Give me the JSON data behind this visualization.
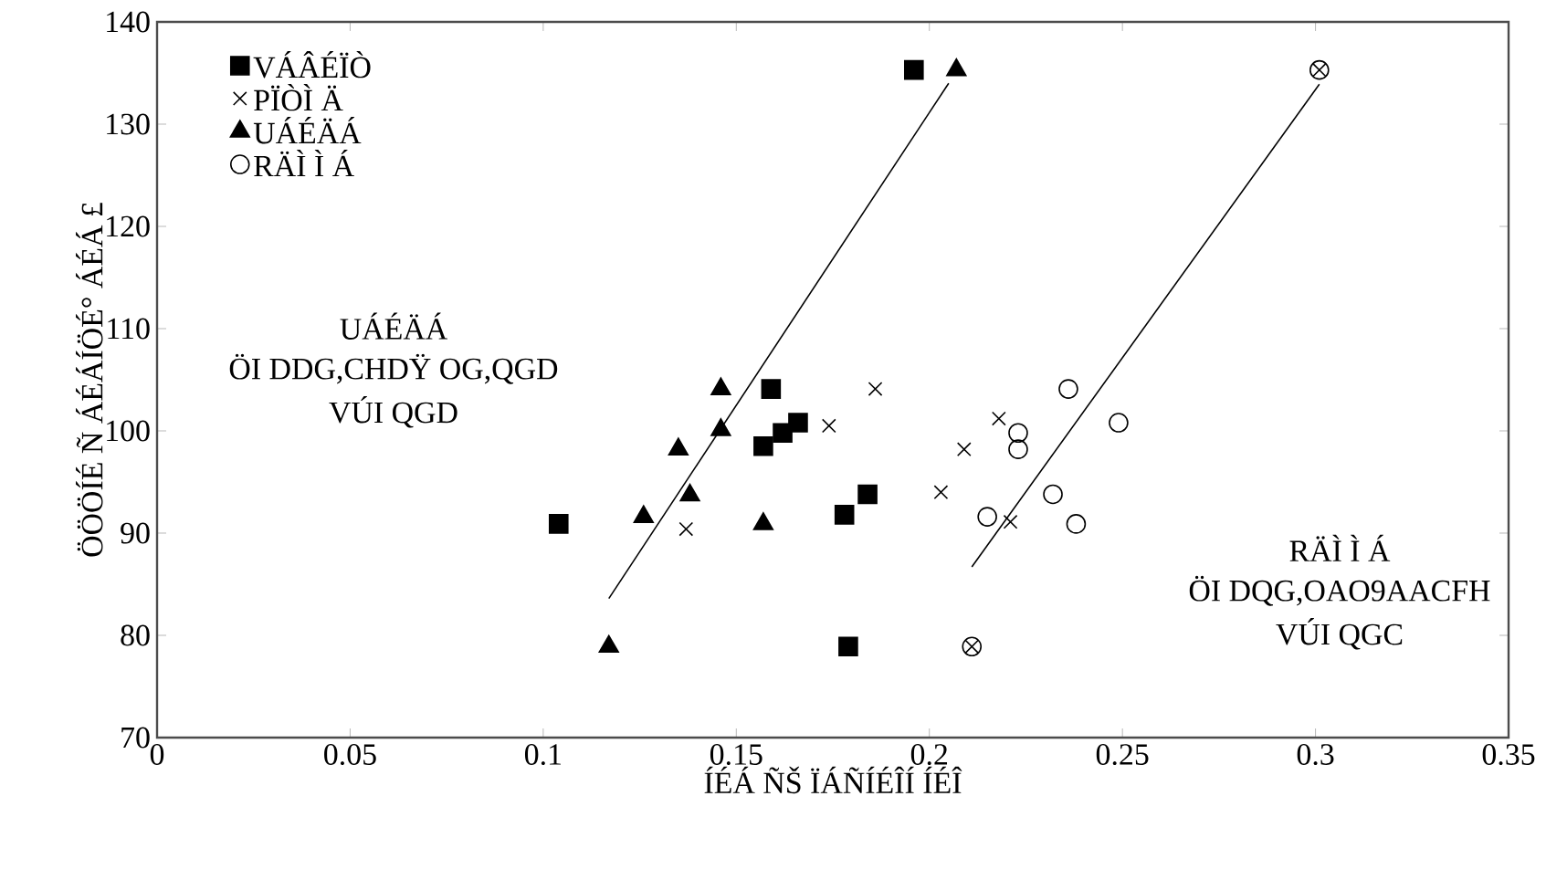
{
  "chart_data": {
    "type": "scatter",
    "xlabel": "ÍÉÁ ÑŠ ÏÁÑÍÉÎÍ ÍÉÎ",
    "ylabel": "ÖÖÖÍÉ Ñ ÁÉÁÍÖÉ° ÁÉÁ £",
    "xlim": [
      0,
      0.35
    ],
    "ylim": [
      70,
      140
    ],
    "xticks": [
      0,
      0.05,
      0.1,
      0.15,
      0.2,
      0.25,
      0.3,
      0.35
    ],
    "yticks": [
      70,
      80,
      90,
      100,
      110,
      120,
      130,
      140
    ],
    "legend": "top left",
    "grid": false,
    "annotations": [
      "UÁÉÄÁ",
      "ÖI DDG,CHDŸ OG,QGD",
      "VÚI QGD",
      "RÄÌ Ì Á",
      "ÖI DQG,OAO9AACFH",
      "VÚI QGC"
    ],
    "series": [
      {
        "name": "VÁÂÉÏÒ",
        "color": "#000000",
        "marker": "square",
        "x": [
          0.196,
          0.104,
          0.159,
          0.166,
          0.162,
          0.157,
          0.184,
          0.178,
          0.179
        ],
        "values": [
          135.3,
          90.9,
          104.1,
          100.8,
          99.8,
          98.5,
          93.8,
          91.8,
          78.9
        ]
      },
      {
        "name": "PÏÒÌ Ä",
        "color": "#000000",
        "marker": "cross",
        "x": [
          0.301,
          0.186,
          0.174,
          0.137,
          0.218,
          0.209,
          0.203,
          0.221,
          0.211
        ],
        "values": [
          135.3,
          104.1,
          100.5,
          90.4,
          101.2,
          98.2,
          94.0,
          91.1,
          78.9
        ]
      },
      {
        "name": "UÁÉÄÁ",
        "color": "#000000",
        "marker": "triangle",
        "x": [
          0.207,
          0.146,
          0.146,
          0.135,
          0.138,
          0.126,
          0.157,
          0.117
        ],
        "values": [
          135.3,
          104.1,
          100.1,
          98.2,
          93.7,
          91.6,
          90.9,
          78.9
        ]
      },
      {
        "name": "RÄÌ Ì Á",
        "color": "#000000",
        "marker": "circle",
        "x": [
          0.301,
          0.236,
          0.249,
          0.223,
          0.223,
          0.232,
          0.238,
          0.215,
          0.211
        ],
        "values": [
          135.3,
          104.1,
          100.8,
          99.8,
          98.2,
          93.8,
          90.9,
          91.6,
          78.9
        ]
      },
      {
        "type": "line",
        "color": "#000000",
        "x": [
          0.117,
          0.205
        ],
        "values": [
          83.6,
          134.0
        ]
      },
      {
        "type": "line",
        "color": "#000000",
        "x": [
          0.211,
          0.301
        ],
        "values": [
          86.7,
          133.9
        ]
      }
    ]
  }
}
